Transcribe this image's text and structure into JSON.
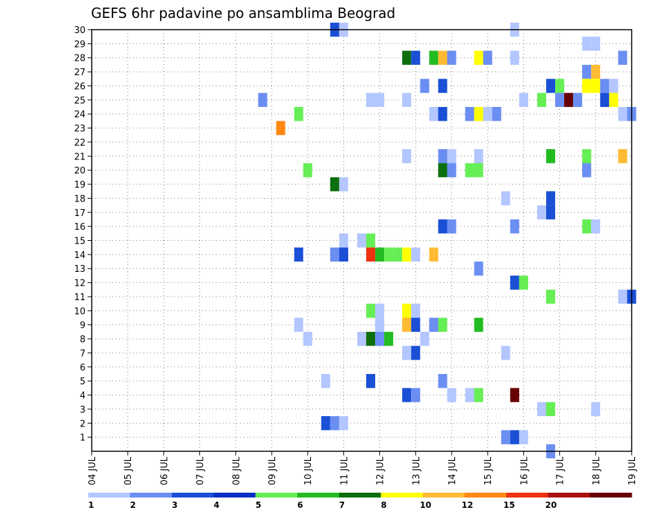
{
  "chart_data": {
    "type": "heatmap",
    "title": "GEFS 6hr padavine po ansamblima Beograd",
    "x_categories": [
      "04 JUL",
      "05 JUL",
      "06 JUL",
      "07 JUL",
      "08 JUL",
      "09 JUL",
      "10 JUL",
      "11 JUL",
      "12 JUL",
      "13 JUL",
      "14 JUL",
      "15 JUL",
      "16 JUL",
      "17 JUL",
      "18 JUL",
      "19 JUL"
    ],
    "x_unit": "day (6-hour steps)",
    "xlim_days": [
      4,
      19
    ],
    "y_categories": [
      "1",
      "2",
      "3",
      "4",
      "5",
      "6",
      "7",
      "8",
      "9",
      "10",
      "11",
      "12",
      "13",
      "14",
      "15",
      "16",
      "17",
      "18",
      "19",
      "20",
      "21",
      "22",
      "23",
      "24",
      "25",
      "26",
      "27",
      "28",
      "29",
      "30"
    ],
    "ylim": [
      0,
      30
    ],
    "grid": true,
    "colorbar": {
      "placement": "bottom",
      "ticks": [
        "1",
        "2",
        "3",
        "4",
        "5",
        "6",
        "7",
        "8",
        "10",
        "12",
        "15",
        "20"
      ],
      "colors": [
        "#b3c6ff",
        "#6b8ef2",
        "#1a4fd6",
        "#0a2fc4",
        "#66ee55",
        "#22bb22",
        "#0d6e0d",
        "#ffff00",
        "#ffbb33",
        "#ff8811",
        "#ee3311",
        "#aa1111",
        "#660000"
      ]
    },
    "cells": [
      {
        "day": 10.75,
        "member": 30,
        "level": 3
      },
      {
        "day": 11.0,
        "member": 30,
        "level": 1
      },
      {
        "day": 15.75,
        "member": 30,
        "level": 1
      },
      {
        "day": 17.75,
        "member": 29,
        "level": 1
      },
      {
        "day": 18.0,
        "member": 29,
        "level": 1
      },
      {
        "day": 12.75,
        "member": 28,
        "level": 7
      },
      {
        "day": 13.0,
        "member": 28,
        "level": 3
      },
      {
        "day": 13.5,
        "member": 28,
        "level": 6
      },
      {
        "day": 13.75,
        "member": 28,
        "level": 9
      },
      {
        "day": 14.0,
        "member": 28,
        "level": 2
      },
      {
        "day": 14.75,
        "member": 28,
        "level": 8
      },
      {
        "day": 15.0,
        "member": 28,
        "level": 2
      },
      {
        "day": 15.75,
        "member": 28,
        "level": 1
      },
      {
        "day": 18.75,
        "member": 28,
        "level": 2
      },
      {
        "day": 17.75,
        "member": 27,
        "level": 2
      },
      {
        "day": 18.0,
        "member": 27,
        "level": 9
      },
      {
        "day": 13.25,
        "member": 26,
        "level": 2
      },
      {
        "day": 13.75,
        "member": 26,
        "level": 3
      },
      {
        "day": 16.75,
        "member": 26,
        "level": 3
      },
      {
        "day": 17.0,
        "member": 26,
        "level": 5
      },
      {
        "day": 17.75,
        "member": 26,
        "level": 8
      },
      {
        "day": 18.0,
        "member": 26,
        "level": 8
      },
      {
        "day": 18.25,
        "member": 26,
        "level": 2
      },
      {
        "day": 18.5,
        "member": 26,
        "level": 1
      },
      {
        "day": 8.75,
        "member": 25,
        "level": 2
      },
      {
        "day": 11.75,
        "member": 25,
        "level": 1
      },
      {
        "day": 12.0,
        "member": 25,
        "level": 1
      },
      {
        "day": 12.75,
        "member": 25,
        "level": 1
      },
      {
        "day": 16.0,
        "member": 25,
        "level": 1
      },
      {
        "day": 16.5,
        "member": 25,
        "level": 5
      },
      {
        "day": 17.0,
        "member": 25,
        "level": 2
      },
      {
        "day": 17.25,
        "member": 25,
        "level": 13
      },
      {
        "day": 17.5,
        "member": 25,
        "level": 2
      },
      {
        "day": 18.25,
        "member": 25,
        "level": 3
      },
      {
        "day": 18.5,
        "member": 25,
        "level": 8
      },
      {
        "day": 9.75,
        "member": 24,
        "level": 5
      },
      {
        "day": 13.5,
        "member": 24,
        "level": 1
      },
      {
        "day": 13.75,
        "member": 24,
        "level": 3
      },
      {
        "day": 14.5,
        "member": 24,
        "level": 2
      },
      {
        "day": 14.75,
        "member": 24,
        "level": 8
      },
      {
        "day": 15.0,
        "member": 24,
        "level": 1
      },
      {
        "day": 15.25,
        "member": 24,
        "level": 2
      },
      {
        "day": 18.75,
        "member": 24,
        "level": 1
      },
      {
        "day": 19.0,
        "member": 24,
        "level": 2
      },
      {
        "day": 9.25,
        "member": 23,
        "level": 10
      },
      {
        "day": 12.75,
        "member": 21,
        "level": 1
      },
      {
        "day": 13.75,
        "member": 21,
        "level": 2
      },
      {
        "day": 14.0,
        "member": 21,
        "level": 1
      },
      {
        "day": 14.75,
        "member": 21,
        "level": 1
      },
      {
        "day": 16.75,
        "member": 21,
        "level": 6
      },
      {
        "day": 17.75,
        "member": 21,
        "level": 5
      },
      {
        "day": 18.75,
        "member": 21,
        "level": 9
      },
      {
        "day": 10.0,
        "member": 20,
        "level": 5
      },
      {
        "day": 13.75,
        "member": 20,
        "level": 7
      },
      {
        "day": 14.0,
        "member": 20,
        "level": 2
      },
      {
        "day": 14.5,
        "member": 20,
        "level": 5
      },
      {
        "day": 14.75,
        "member": 20,
        "level": 5
      },
      {
        "day": 17.75,
        "member": 20,
        "level": 2
      },
      {
        "day": 10.75,
        "member": 19,
        "level": 7
      },
      {
        "day": 11.0,
        "member": 19,
        "level": 1
      },
      {
        "day": 16.75,
        "member": 18,
        "level": 3
      },
      {
        "day": 15.5,
        "member": 18,
        "level": 1
      },
      {
        "day": 16.5,
        "member": 17,
        "level": 1
      },
      {
        "day": 16.75,
        "member": 17,
        "level": 3
      },
      {
        "day": 13.75,
        "member": 16,
        "level": 3
      },
      {
        "day": 14.0,
        "member": 16,
        "level": 2
      },
      {
        "day": 17.75,
        "member": 16,
        "level": 5
      },
      {
        "day": 18.0,
        "member": 16,
        "level": 1
      },
      {
        "day": 15.75,
        "member": 16,
        "level": 2
      },
      {
        "day": 11.0,
        "member": 15,
        "level": 1
      },
      {
        "day": 11.5,
        "member": 15,
        "level": 1
      },
      {
        "day": 11.75,
        "member": 15,
        "level": 5
      },
      {
        "day": 9.75,
        "member": 14,
        "level": 3
      },
      {
        "day": 10.75,
        "member": 14,
        "level": 2
      },
      {
        "day": 11.0,
        "member": 14,
        "level": 3
      },
      {
        "day": 11.75,
        "member": 14,
        "level": 11
      },
      {
        "day": 12.0,
        "member": 14,
        "level": 6
      },
      {
        "day": 12.25,
        "member": 14,
        "level": 5
      },
      {
        "day": 12.5,
        "member": 14,
        "level": 5
      },
      {
        "day": 12.75,
        "member": 14,
        "level": 8
      },
      {
        "day": 13.0,
        "member": 14,
        "level": 1
      },
      {
        "day": 13.5,
        "member": 14,
        "level": 9
      },
      {
        "day": 14.75,
        "member": 13,
        "level": 2
      },
      {
        "day": 15.75,
        "member": 12,
        "level": 3
      },
      {
        "day": 16.0,
        "member": 12,
        "level": 5
      },
      {
        "day": 16.75,
        "member": 11,
        "level": 5
      },
      {
        "day": 18.75,
        "member": 11,
        "level": 1
      },
      {
        "day": 19.0,
        "member": 11,
        "level": 3
      },
      {
        "day": 11.75,
        "member": 10,
        "level": 5
      },
      {
        "day": 12.0,
        "member": 10,
        "level": 1
      },
      {
        "day": 12.75,
        "member": 10,
        "level": 8
      },
      {
        "day": 13.0,
        "member": 10,
        "level": 1
      },
      {
        "day": 9.75,
        "member": 9,
        "level": 1
      },
      {
        "day": 12.0,
        "member": 9,
        "level": 1
      },
      {
        "day": 12.75,
        "member": 9,
        "level": 9
      },
      {
        "day": 13.0,
        "member": 9,
        "level": 3
      },
      {
        "day": 13.5,
        "member": 9,
        "level": 2
      },
      {
        "day": 13.75,
        "member": 9,
        "level": 5
      },
      {
        "day": 14.75,
        "member": 9,
        "level": 6
      },
      {
        "day": 10.0,
        "member": 8,
        "level": 1
      },
      {
        "day": 11.5,
        "member": 8,
        "level": 1
      },
      {
        "day": 11.75,
        "member": 8,
        "level": 7
      },
      {
        "day": 12.0,
        "member": 8,
        "level": 2
      },
      {
        "day": 12.25,
        "member": 8,
        "level": 6
      },
      {
        "day": 13.25,
        "member": 8,
        "level": 1
      },
      {
        "day": 12.75,
        "member": 7,
        "level": 1
      },
      {
        "day": 13.0,
        "member": 7,
        "level": 3
      },
      {
        "day": 15.5,
        "member": 7,
        "level": 1
      },
      {
        "day": 10.5,
        "member": 5,
        "level": 1
      },
      {
        "day": 11.75,
        "member": 5,
        "level": 3
      },
      {
        "day": 13.75,
        "member": 5,
        "level": 2
      },
      {
        "day": 12.75,
        "member": 4,
        "level": 3
      },
      {
        "day": 13.0,
        "member": 4,
        "level": 2
      },
      {
        "day": 14.0,
        "member": 4,
        "level": 1
      },
      {
        "day": 14.5,
        "member": 4,
        "level": 1
      },
      {
        "day": 14.75,
        "member": 4,
        "level": 5
      },
      {
        "day": 15.75,
        "member": 4,
        "level": 13
      },
      {
        "day": 16.5,
        "member": 3,
        "level": 1
      },
      {
        "day": 16.75,
        "member": 3,
        "level": 5
      },
      {
        "day": 18.0,
        "member": 3,
        "level": 1
      },
      {
        "day": 10.5,
        "member": 2,
        "level": 3
      },
      {
        "day": 10.75,
        "member": 2,
        "level": 2
      },
      {
        "day": 11.0,
        "member": 2,
        "level": 1
      },
      {
        "day": 15.5,
        "member": 1,
        "level": 2
      },
      {
        "day": 15.75,
        "member": 1,
        "level": 3
      },
      {
        "day": 16.0,
        "member": 1,
        "level": 1
      },
      {
        "day": 16.75,
        "member": 0,
        "level": 2
      }
    ]
  }
}
